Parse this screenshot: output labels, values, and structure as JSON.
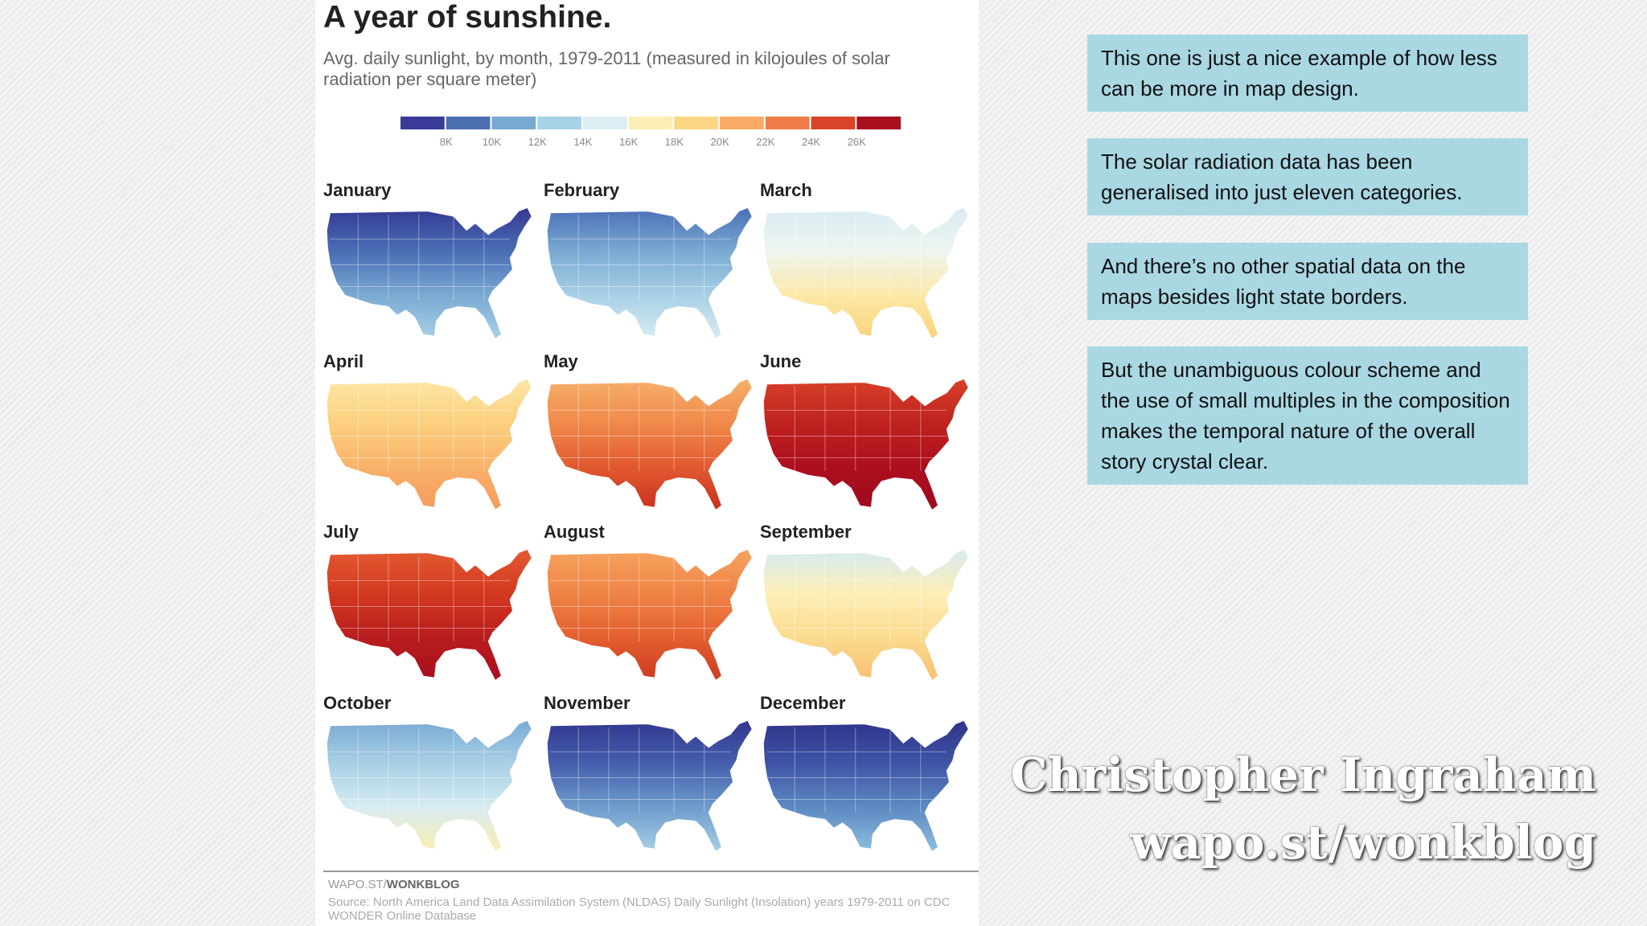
{
  "graphic": {
    "title": "A year of sunshine.",
    "subtitle": "Avg. daily sunlight, by month, 1979-2011 (measured in kilojoules of solar radiation per square meter)",
    "legend": {
      "colors": [
        "#3a3b98",
        "#4a6fb0",
        "#78a9d2",
        "#a6d3e6",
        "#dcedf3",
        "#fcefb5",
        "#fcd684",
        "#f9ab66",
        "#ef7d49",
        "#da4429",
        "#a8101e"
      ],
      "labels": [
        "8K",
        "10K",
        "12K",
        "14K",
        "16K",
        "18K",
        "20K",
        "22K",
        "24K",
        "26K"
      ]
    },
    "maps": [
      {
        "month": "January",
        "colors": [
          "#343893",
          "#4a6eb5",
          "#7aaad3",
          "#a8d0e6"
        ]
      },
      {
        "month": "February",
        "colors": [
          "#4a6eb5",
          "#7aaad3",
          "#a8d0e6",
          "#d8ecf2"
        ]
      },
      {
        "month": "March",
        "colors": [
          "#d8ecf2",
          "#eef5f0",
          "#fbe9a8",
          "#fbd27a"
        ]
      },
      {
        "month": "April",
        "colors": [
          "#fde7a7",
          "#fbd07e",
          "#f9b36b",
          "#f59a5a"
        ]
      },
      {
        "month": "May",
        "colors": [
          "#f6b06a",
          "#f08a4b",
          "#e25a30",
          "#c9301f"
        ]
      },
      {
        "month": "June",
        "colors": [
          "#d7402a",
          "#c0221e",
          "#ad0f1f",
          "#9e0b1e"
        ]
      },
      {
        "month": "July",
        "colors": [
          "#e35a32",
          "#d3391f",
          "#b81d1e",
          "#a90e1e"
        ]
      },
      {
        "month": "August",
        "colors": [
          "#f6a45f",
          "#ef8447",
          "#e4602f",
          "#cc3a22"
        ]
      },
      {
        "month": "September",
        "colors": [
          "#d5ebf1",
          "#fcefb7",
          "#fbdb8f",
          "#f8c073"
        ]
      },
      {
        "month": "October",
        "colors": [
          "#7aaad3",
          "#a8d0e6",
          "#d8ecf2",
          "#fbeeb0"
        ]
      },
      {
        "month": "November",
        "colors": [
          "#33378f",
          "#4560ad",
          "#6f9ccc",
          "#a8d0e6"
        ]
      },
      {
        "month": "December",
        "colors": [
          "#2f338a",
          "#3f55a6",
          "#5d8ac2",
          "#8ebfdf"
        ]
      }
    ],
    "credit_prefix": "WAPO.ST/",
    "credit_bold": "WONKBLOG",
    "source": "Source: North America Land Data Assimilation System (NLDAS) Daily Sunlight (Insolation) years 1979-2011 on CDC WONDER Online Database"
  },
  "notes": [
    "This one is just a nice example of how less can be more in map design.",
    "The solar radiation data has been generalised into just eleven categories.",
    "And there’s no other spatial data on the maps besides light state borders.",
    "But the unambiguous colour scheme and the use of small multiples in the composition makes the temporal nature of the overall story crystal clear."
  ],
  "attribution": [
    "Christopher Ingraham",
    "wapo.st/wonkblog"
  ]
}
